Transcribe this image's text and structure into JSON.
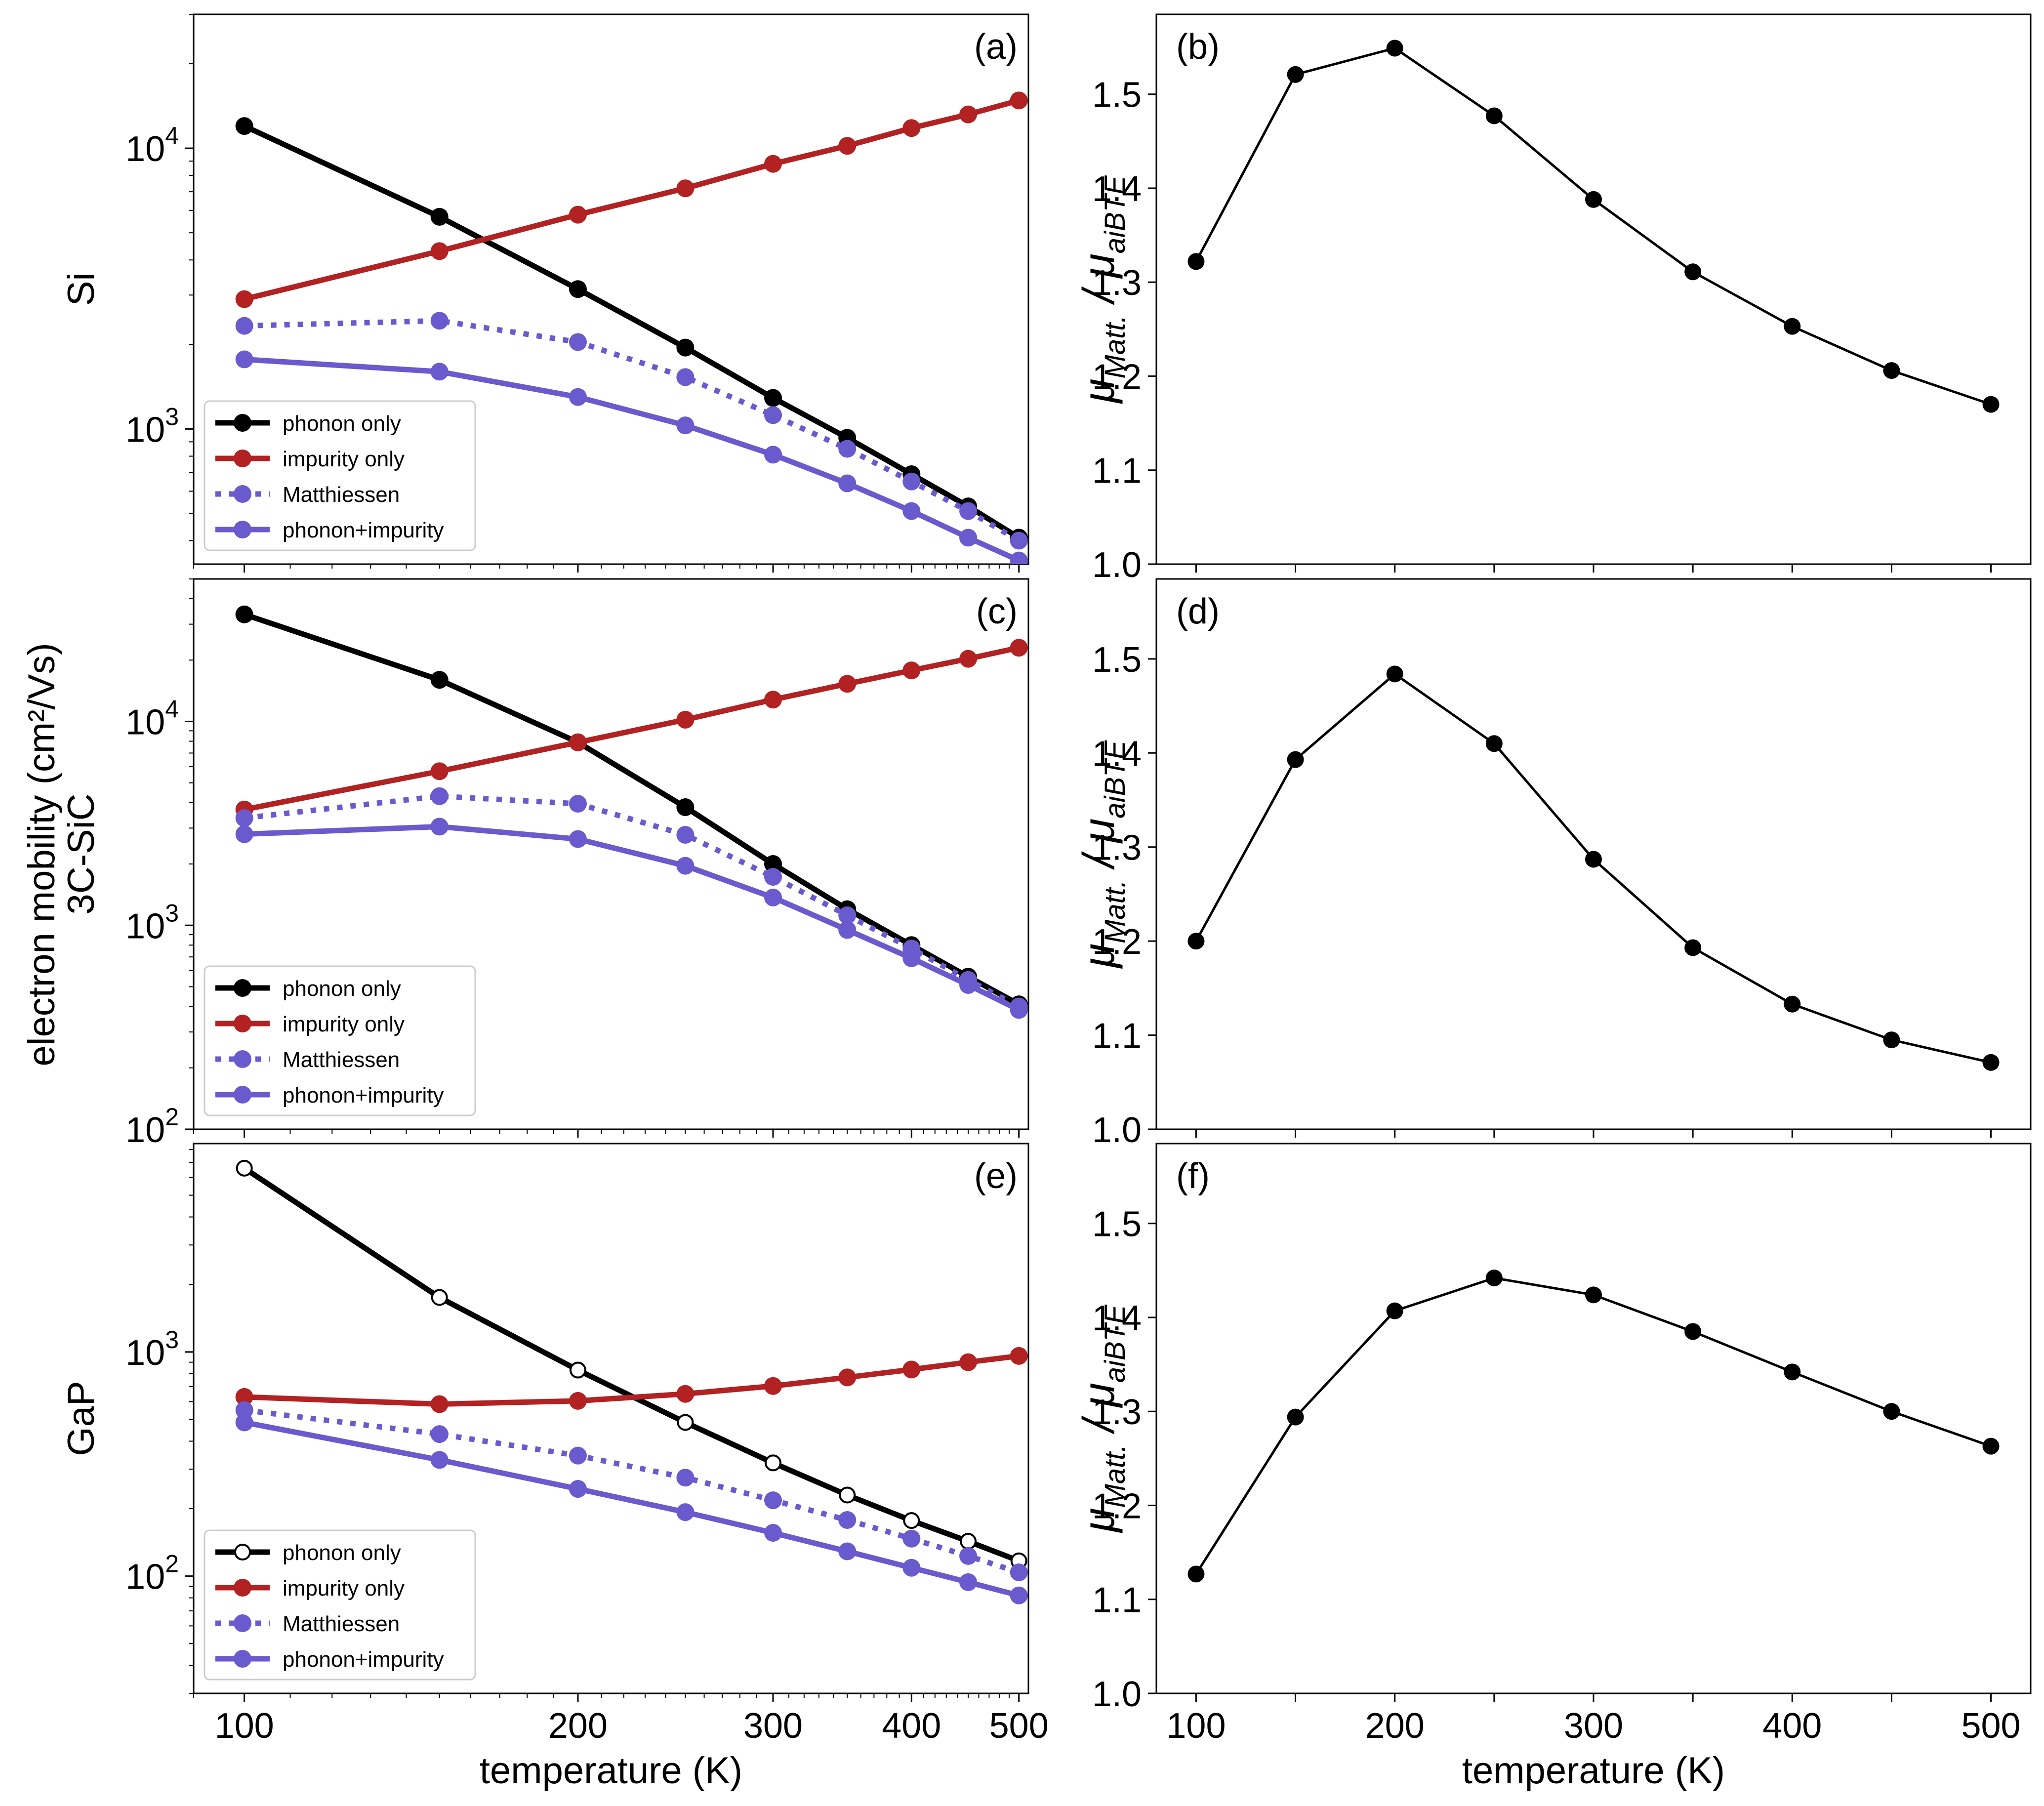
{
  "figure": {
    "left_ylabel": "electron mobility (cm²/Vs)",
    "right_ylabel_main": "μ",
    "right_ylabel_num_sub": "Matt.",
    "right_ylabel_sep": " / μ",
    "right_ylabel_den_sub": "aiBTE",
    "xlabel": "temperature (K)"
  },
  "colors": {
    "phonon": "#000000",
    "impurity": "#b22222",
    "matthiessen": "#6a5acd",
    "combined": "#6a5acd"
  },
  "legend_labels": [
    "phonon only",
    "impurity only",
    "Matthiessen",
    "phonon+impurity"
  ],
  "chart_data": [
    {
      "panel": "(a)",
      "row_label": "Si",
      "type": "line",
      "xscale": "log",
      "yscale": "log",
      "xlim": [
        90,
        510
      ],
      "ylim": [
        330,
        30000
      ],
      "x": [
        100,
        150,
        200,
        250,
        300,
        350,
        400,
        450,
        500
      ],
      "xticks": [],
      "yticks": [
        {
          "v": 1000,
          "b": "10",
          "e": "3"
        },
        {
          "v": 10000,
          "b": "10",
          "e": "4"
        }
      ],
      "series": [
        {
          "name": "phonon only",
          "style": "phonon",
          "values": [
            12000,
            5700,
            3150,
            1950,
            1290,
            930,
            690,
            530,
            410
          ]
        },
        {
          "name": "impurity only",
          "style": "impurity",
          "values": [
            2900,
            4300,
            5800,
            7200,
            8800,
            10200,
            11800,
            13200,
            14800
          ]
        },
        {
          "name": "Matthiessen",
          "style": "matthiessen",
          "values": [
            2330,
            2430,
            2040,
            1530,
            1120,
            850,
            650,
            510,
            400
          ]
        },
        {
          "name": "phonon+impurity",
          "style": "combined",
          "values": [
            1770,
            1600,
            1300,
            1030,
            810,
            640,
            510,
            410,
            340
          ]
        }
      ]
    },
    {
      "panel": "(b)",
      "type": "line",
      "xscale": "linear",
      "yscale": "linear",
      "xlim": [
        80,
        520
      ],
      "ylim": [
        1.0,
        1.585
      ],
      "xticks": [],
      "yticks": [
        {
          "v": 1.0,
          "t": "1.0"
        },
        {
          "v": 1.1,
          "t": "1.1"
        },
        {
          "v": 1.2,
          "t": "1.2"
        },
        {
          "v": 1.3,
          "t": "1.3"
        },
        {
          "v": 1.4,
          "t": "1.4"
        },
        {
          "v": 1.5,
          "t": "1.5"
        }
      ],
      "x": [
        100,
        150,
        200,
        250,
        300,
        350,
        400,
        450,
        500
      ],
      "values": [
        1.322,
        1.521,
        1.549,
        1.477,
        1.388,
        1.311,
        1.253,
        1.206,
        1.17
      ]
    },
    {
      "panel": "(c)",
      "row_label": "3C-SiC",
      "type": "line",
      "xscale": "log",
      "yscale": "log",
      "xlim": [
        90,
        510
      ],
      "ylim": [
        100,
        50000
      ],
      "x": [
        100,
        150,
        200,
        250,
        300,
        350,
        400,
        450,
        500
      ],
      "xticks": [],
      "yticks": [
        {
          "v": 100,
          "b": "10",
          "e": "2"
        },
        {
          "v": 1000,
          "b": "10",
          "e": "3"
        },
        {
          "v": 10000,
          "b": "10",
          "e": "4"
        }
      ],
      "series": [
        {
          "name": "phonon only",
          "style": "phonon",
          "values": [
            33500,
            16000,
            7900,
            3800,
            2000,
            1200,
            800,
            560,
            410
          ]
        },
        {
          "name": "impurity only",
          "style": "impurity",
          "values": [
            3700,
            5700,
            7900,
            10200,
            12800,
            15300,
            17800,
            20300,
            23000
          ]
        },
        {
          "name": "Matthiessen",
          "style": "matthiessen",
          "values": [
            3360,
            4300,
            3950,
            2780,
            1730,
            1120,
            770,
            540,
            400
          ]
        },
        {
          "name": "phonon+impurity",
          "style": "combined",
          "values": [
            2800,
            3050,
            2650,
            1960,
            1370,
            950,
            690,
            510,
            385
          ]
        }
      ]
    },
    {
      "panel": "(d)",
      "type": "line",
      "xscale": "linear",
      "yscale": "linear",
      "xlim": [
        80,
        520
      ],
      "ylim": [
        1.0,
        1.585
      ],
      "xticks": [],
      "yticks": [
        {
          "v": 1.0,
          "t": "1.0"
        },
        {
          "v": 1.1,
          "t": "1.1"
        },
        {
          "v": 1.2,
          "t": "1.2"
        },
        {
          "v": 1.3,
          "t": "1.3"
        },
        {
          "v": 1.4,
          "t": "1.4"
        },
        {
          "v": 1.5,
          "t": "1.5"
        }
      ],
      "x": [
        100,
        150,
        200,
        250,
        300,
        350,
        400,
        450,
        500
      ],
      "values": [
        1.2,
        1.393,
        1.484,
        1.41,
        1.287,
        1.193,
        1.133,
        1.095,
        1.071
      ]
    },
    {
      "panel": "(e)",
      "row_label": "GaP",
      "type": "line",
      "xscale": "log",
      "yscale": "log",
      "xlim": [
        90,
        510
      ],
      "ylim": [
        30,
        8500
      ],
      "x": [
        100,
        150,
        200,
        250,
        300,
        350,
        400,
        450,
        500
      ],
      "xticks": [
        {
          "v": 100,
          "t": "100"
        },
        {
          "v": 200,
          "t": "200"
        },
        {
          "v": 300,
          "t": "300"
        },
        {
          "v": 400,
          "t": "400"
        },
        {
          "v": 500,
          "t": "500"
        }
      ],
      "yticks": [
        {
          "v": 100,
          "b": "10",
          "e": "2"
        },
        {
          "v": 1000,
          "b": "10",
          "e": "3"
        }
      ],
      "series": [
        {
          "name": "phonon only",
          "style": "phonon_open",
          "values": [
            6600,
            1750,
            830,
            485,
            320,
            230,
            177,
            143,
            117
          ]
        },
        {
          "name": "impurity only",
          "style": "impurity",
          "values": [
            630,
            585,
            605,
            650,
            705,
            770,
            835,
            900,
            960
          ]
        },
        {
          "name": "Matthiessen",
          "style": "matthiessen",
          "values": [
            550,
            430,
            345,
            275,
            218,
            178,
            147,
            123,
            104
          ]
        },
        {
          "name": "phonon+impurity",
          "style": "combined",
          "values": [
            485,
            330,
            245,
            193,
            156,
            129,
            109,
            94,
            82
          ]
        }
      ]
    },
    {
      "panel": "(f)",
      "type": "line",
      "xscale": "linear",
      "yscale": "linear",
      "xlim": [
        80,
        520
      ],
      "ylim": [
        1.0,
        1.585
      ],
      "xticks": [
        {
          "v": 100,
          "t": "100"
        },
        {
          "v": 200,
          "t": "200"
        },
        {
          "v": 300,
          "t": "300"
        },
        {
          "v": 400,
          "t": "400"
        },
        {
          "v": 500,
          "t": "500"
        }
      ],
      "yticks": [
        {
          "v": 1.0,
          "t": "1.0"
        },
        {
          "v": 1.1,
          "t": "1.1"
        },
        {
          "v": 1.2,
          "t": "1.2"
        },
        {
          "v": 1.3,
          "t": "1.3"
        },
        {
          "v": 1.4,
          "t": "1.4"
        },
        {
          "v": 1.5,
          "t": "1.5"
        }
      ],
      "x": [
        100,
        150,
        200,
        250,
        300,
        350,
        400,
        450,
        500
      ],
      "values": [
        1.127,
        1.294,
        1.407,
        1.442,
        1.424,
        1.385,
        1.342,
        1.3,
        1.263
      ]
    }
  ]
}
